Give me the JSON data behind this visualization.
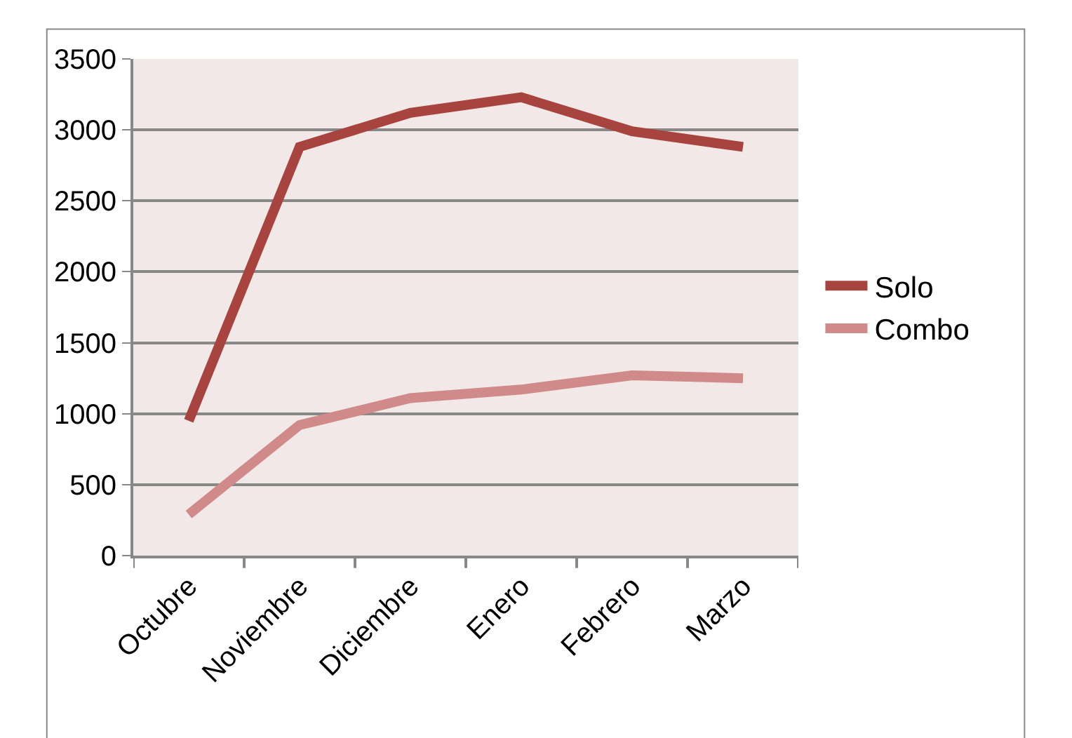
{
  "chart_data": {
    "type": "line",
    "categories": [
      "Octubre",
      "Noviembre",
      "Diciembre",
      "Enero",
      "Febrero",
      "Marzo"
    ],
    "series": [
      {
        "name": "Solo",
        "color": "#a84440",
        "values": [
          950,
          2880,
          3120,
          3230,
          2990,
          2880
        ]
      },
      {
        "name": "Combo",
        "color": "#d08a8a",
        "values": [
          290,
          920,
          1110,
          1170,
          1270,
          1250
        ]
      }
    ],
    "ylim": [
      0,
      3500
    ],
    "yticks": [
      0,
      500,
      1000,
      1500,
      2000,
      2500,
      3000,
      3500
    ],
    "grid": "y",
    "legend": "right",
    "marker": "none",
    "line_style": "solid"
  }
}
